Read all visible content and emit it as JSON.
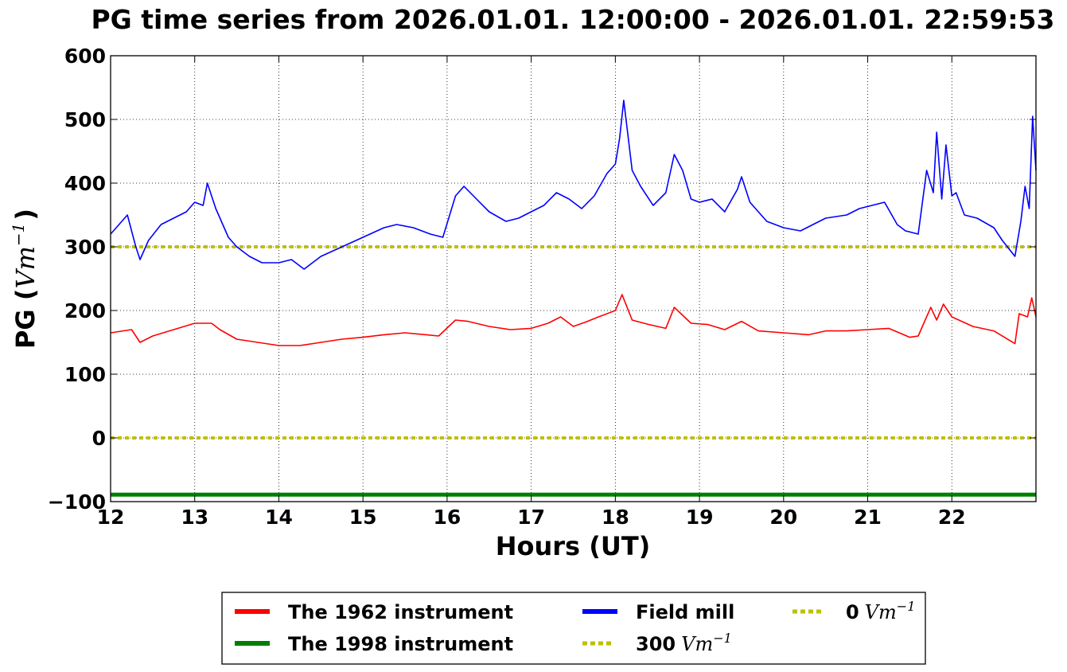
{
  "chart_data": {
    "type": "line",
    "title": "PG time series from 2026.01.01. 12:00:00 - 2026.01.01. 22:59:53",
    "xlabel": "Hours (UT)",
    "ylabel_text": "PG (",
    "ylabel_unit": "Vm",
    "ylabel_exp": "−1",
    "ylabel_close": ")",
    "xlim": [
      12,
      23
    ],
    "ylim": [
      -100,
      600
    ],
    "xticks": [
      12,
      13,
      14,
      15,
      16,
      17,
      18,
      19,
      20,
      21,
      22
    ],
    "yticks": [
      -100,
      0,
      100,
      200,
      300,
      400,
      500,
      600
    ],
    "ytick_labels": [
      "−100",
      "0",
      "100",
      "200",
      "300",
      "400",
      "500",
      "600"
    ],
    "grid": true,
    "legend_position": "below",
    "series": [
      {
        "name": "The 1962 instrument",
        "color": "#ff0000",
        "style": "solid",
        "x": [
          12.0,
          12.25,
          12.35,
          12.5,
          12.75,
          13.0,
          13.2,
          13.3,
          13.5,
          13.75,
          14.0,
          14.25,
          14.5,
          14.75,
          15.0,
          15.25,
          15.5,
          15.75,
          15.9,
          16.1,
          16.25,
          16.5,
          16.75,
          17.0,
          17.2,
          17.35,
          17.5,
          17.65,
          17.8,
          18.0,
          18.08,
          18.2,
          18.4,
          18.6,
          18.7,
          18.9,
          19.1,
          19.3,
          19.5,
          19.7,
          20.0,
          20.3,
          20.5,
          20.75,
          21.0,
          21.25,
          21.5,
          21.6,
          21.75,
          21.82,
          21.9,
          22.0,
          22.25,
          22.5,
          22.75,
          22.8,
          22.9,
          22.95,
          23.0
        ],
        "y": [
          165,
          170,
          150,
          160,
          170,
          180,
          180,
          170,
          155,
          150,
          145,
          145,
          150,
          155,
          158,
          162,
          165,
          162,
          160,
          185,
          183,
          175,
          170,
          172,
          180,
          190,
          175,
          182,
          190,
          200,
          225,
          185,
          178,
          172,
          205,
          180,
          178,
          170,
          183,
          168,
          165,
          162,
          168,
          168,
          170,
          172,
          158,
          160,
          205,
          185,
          210,
          190,
          175,
          168,
          148,
          195,
          190,
          220,
          190
        ]
      },
      {
        "name": "The 1998 instrument",
        "color": "#008000",
        "style": "solid",
        "x": [
          12.0,
          23.0
        ],
        "y": [
          -89,
          -89
        ]
      },
      {
        "name": "Field mill",
        "color": "#0000ff",
        "style": "solid",
        "x": [
          12.0,
          12.1,
          12.2,
          12.3,
          12.35,
          12.45,
          12.6,
          12.75,
          12.9,
          13.0,
          13.1,
          13.15,
          13.25,
          13.4,
          13.5,
          13.65,
          13.8,
          14.0,
          14.15,
          14.3,
          14.5,
          14.75,
          15.0,
          15.25,
          15.4,
          15.6,
          15.8,
          15.95,
          16.1,
          16.2,
          16.35,
          16.5,
          16.7,
          16.85,
          17.0,
          17.15,
          17.3,
          17.45,
          17.6,
          17.75,
          17.9,
          18.0,
          18.05,
          18.1,
          18.2,
          18.3,
          18.45,
          18.6,
          18.7,
          18.8,
          18.9,
          19.0,
          19.15,
          19.3,
          19.45,
          19.5,
          19.6,
          19.8,
          20.0,
          20.2,
          20.35,
          20.5,
          20.75,
          20.9,
          21.05,
          21.2,
          21.35,
          21.45,
          21.6,
          21.7,
          21.78,
          21.82,
          21.88,
          21.93,
          22.0,
          22.05,
          22.15,
          22.3,
          22.5,
          22.6,
          22.75,
          22.82,
          22.87,
          22.92,
          22.96,
          23.0
        ],
        "y": [
          320,
          335,
          350,
          300,
          280,
          310,
          335,
          345,
          355,
          370,
          365,
          400,
          360,
          315,
          300,
          285,
          275,
          275,
          280,
          265,
          285,
          300,
          315,
          330,
          335,
          330,
          320,
          315,
          380,
          395,
          375,
          355,
          340,
          345,
          355,
          365,
          385,
          375,
          360,
          380,
          415,
          430,
          470,
          530,
          420,
          395,
          365,
          385,
          445,
          420,
          375,
          370,
          375,
          355,
          390,
          410,
          370,
          340,
          330,
          325,
          335,
          345,
          350,
          360,
          365,
          370,
          335,
          325,
          320,
          420,
          385,
          480,
          375,
          460,
          380,
          385,
          350,
          345,
          330,
          310,
          285,
          340,
          395,
          360,
          505,
          420
        ]
      },
      {
        "name": "300",
        "color": "#bfbf00",
        "style": "dotted",
        "x": [
          12.0,
          23.0
        ],
        "y": [
          300,
          300
        ]
      },
      {
        "name": "0",
        "color": "#bfbf00",
        "style": "dotted",
        "x": [
          12.0,
          23.0
        ],
        "y": [
          0,
          0
        ]
      }
    ],
    "legend": [
      {
        "text": "The 1962 instrument",
        "unit": "",
        "unit_exp": ""
      },
      {
        "text": "The 1998 instrument",
        "unit": "",
        "unit_exp": ""
      },
      {
        "text": "Field mill",
        "unit": "",
        "unit_exp": ""
      },
      {
        "text": "300",
        "unit": "Vm",
        "unit_exp": "−1"
      },
      {
        "text": "0",
        "unit": "Vm",
        "unit_exp": "−1"
      }
    ]
  }
}
